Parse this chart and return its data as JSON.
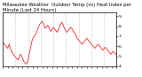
{
  "title": "Milwaukee Weather  Outdoor Temp (vs) Heat Index per Minute (Last 24 Hours)",
  "line_color": "#ff0000",
  "bg_color": "#ffffff",
  "plot_bg_color": "#ffffff",
  "grid_color": "#888888",
  "ylim": [
    38,
    92
  ],
  "ytick_labels": [
    "9.",
    "8.",
    "7.",
    "6.",
    "5.",
    "4."
  ],
  "ytick_vals": [
    88,
    78,
    68,
    58,
    48,
    38
  ],
  "y_axis_side": "right",
  "temp_data": [
    62,
    61,
    60,
    59,
    58,
    57,
    56,
    58,
    60,
    57,
    55,
    53,
    51,
    50,
    49,
    48,
    47,
    46,
    45,
    44,
    46,
    48,
    50,
    49,
    47,
    45,
    43,
    42,
    41,
    40,
    41,
    43,
    46,
    50,
    54,
    58,
    62,
    65,
    67,
    68,
    69,
    70,
    72,
    74,
    76,
    78,
    80,
    81,
    82,
    83,
    82,
    80,
    78,
    76,
    77,
    78,
    79,
    78,
    76,
    74,
    73,
    74,
    76,
    77,
    76,
    75,
    74,
    73,
    72,
    74,
    76,
    78,
    80,
    81,
    82,
    80,
    78,
    76,
    74,
    73,
    72,
    73,
    74,
    75,
    76,
    77,
    76,
    75,
    73,
    72,
    71,
    70,
    68,
    66,
    65,
    64,
    63,
    62,
    61,
    60,
    61,
    62,
    63,
    64,
    65,
    66,
    65,
    64,
    63,
    62,
    61,
    60,
    59,
    58,
    57,
    56,
    57,
    58,
    59,
    60,
    59,
    58,
    57,
    56,
    55,
    54,
    55,
    56,
    57,
    56,
    55,
    54,
    53,
    52,
    51,
    50,
    51,
    52,
    53,
    52,
    51,
    50,
    49
  ],
  "num_vgrid": 10,
  "title_fontsize": 3.8,
  "tick_fontsize": 3.2,
  "linewidth": 0.5
}
